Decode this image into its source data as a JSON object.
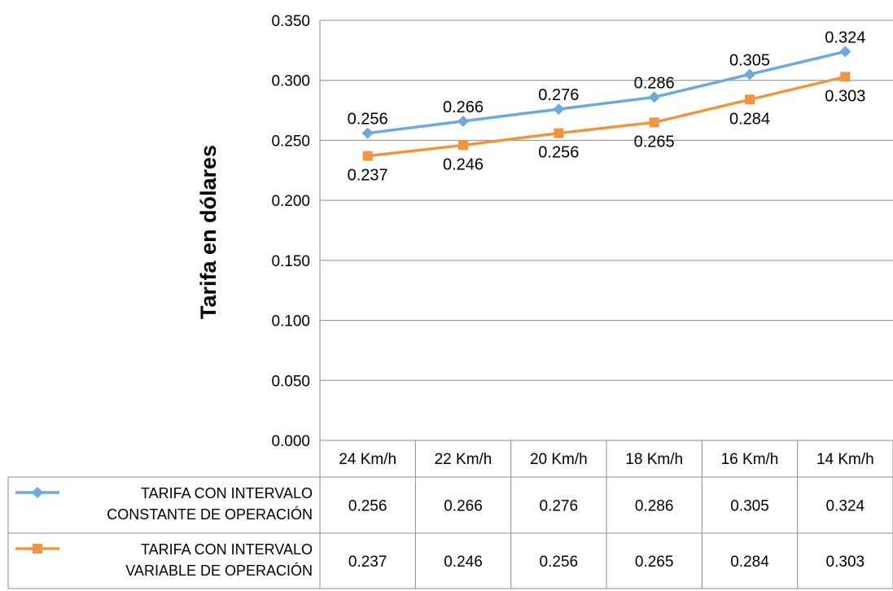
{
  "chart_data": {
    "type": "line",
    "ylabel": "Tarifa en dólares",
    "xlabel": "",
    "title": "",
    "categories": [
      "24 Km/h",
      "22 Km/h",
      "20 Km/h",
      "18 Km/h",
      "16 Km/h",
      "14 Km/h"
    ],
    "ylim": [
      0,
      0.35
    ],
    "yticks": [
      "0.000",
      "0.050",
      "0.100",
      "0.150",
      "0.200",
      "0.250",
      "0.300",
      "0.350"
    ],
    "grid": true,
    "legend": "data-table",
    "series": [
      {
        "name_lines": [
          "TARIFA CON INTERVALO",
          "CONSTANTE DE OPERACIÓN"
        ],
        "values": [
          0.256,
          0.266,
          0.276,
          0.286,
          0.305,
          0.324
        ],
        "labels": [
          "0.256",
          "0.266",
          "0.276",
          "0.286",
          "0.305",
          "0.324"
        ],
        "color": "#6FA8DC",
        "marker": "diamond",
        "label_position": "above"
      },
      {
        "name_lines": [
          "TARIFA CON INTERVALO",
          "VARIABLE DE OPERACIÓN"
        ],
        "values": [
          0.237,
          0.246,
          0.256,
          0.265,
          0.284,
          0.303
        ],
        "labels": [
          "0.237",
          "0.246",
          "0.256",
          "0.265",
          "0.284",
          "0.303"
        ],
        "color": "#F0953F",
        "marker": "square",
        "label_position": "below"
      }
    ]
  }
}
